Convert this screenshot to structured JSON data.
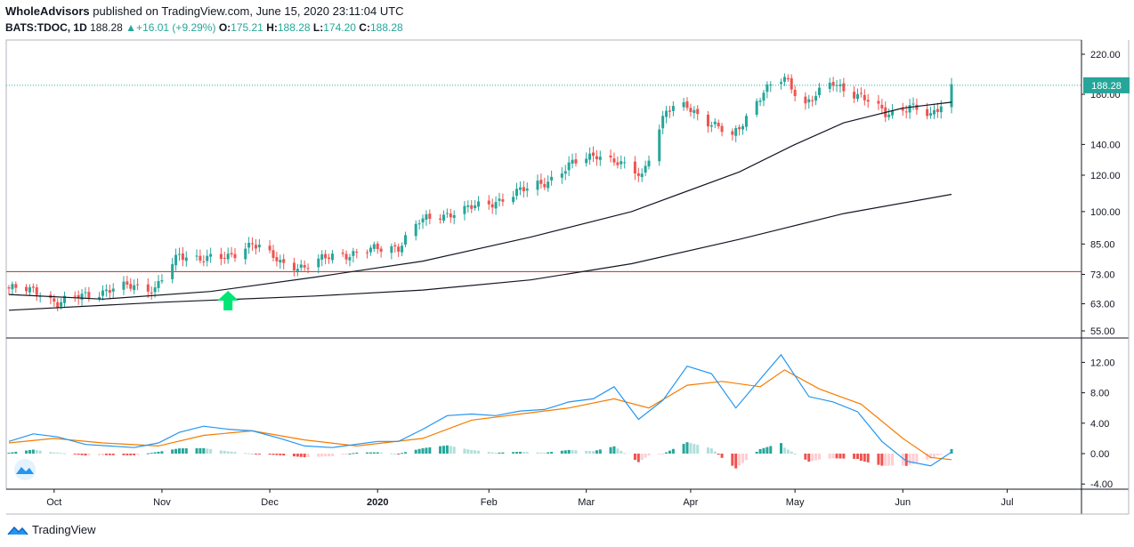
{
  "header": {
    "author": "WholeAdvisors",
    "published_text": "published on TradingView.com, June 15, 2020 23:11:04 UTC",
    "symbol": "BATS:TDOC, 1D",
    "last": "188.28",
    "change": "+16.01 (+9.29%)",
    "open_label": "O:",
    "open": "175.21",
    "high_label": "H:",
    "high": "188.28",
    "low_label": "L:",
    "low": "174.20",
    "close_label": "C:",
    "close": "188.28"
  },
  "footer": {
    "brand": "TradingView"
  },
  "colors": {
    "up": "#26a69a",
    "down": "#ef5350",
    "macd": "#2196f3",
    "signal": "#f57c00",
    "hline": "#c62828",
    "arrow": "#00e676"
  },
  "chart_data": [
    {
      "type": "candlestick",
      "title": "",
      "scale": "log",
      "y_ticks": [
        "220.00",
        "180.00",
        "140.00",
        "120.00",
        "100.00",
        "85.00",
        "73.00",
        "63.00",
        "55.00"
      ],
      "x_ticks": [
        "Oct",
        "Nov",
        "Dec",
        "2020",
        "Feb",
        "Mar",
        "Apr",
        "May",
        "Jun",
        "Jul"
      ],
      "last_price_label": "188.28",
      "horizontal_line": 74,
      "annotation": "green up arrow near Nov 20",
      "price_path": [
        [
          "2019-09-18",
          68
        ],
        [
          "2019-09-27",
          67
        ],
        [
          "2019-10-02",
          63
        ],
        [
          "2019-10-10",
          66
        ],
        [
          "2019-10-24",
          69
        ],
        [
          "2019-10-30",
          68
        ],
        [
          "2019-11-06",
          80
        ],
        [
          "2019-11-20",
          79
        ],
        [
          "2019-11-27",
          86
        ],
        [
          "2019-12-05",
          77
        ],
        [
          "2019-12-12",
          76
        ],
        [
          "2019-12-20",
          80
        ],
        [
          "2020-01-08",
          84
        ],
        [
          "2020-01-14",
          95
        ],
        [
          "2020-01-22",
          99
        ],
        [
          "2020-02-03",
          104
        ],
        [
          "2020-02-14",
          112
        ],
        [
          "2020-02-21",
          118
        ],
        [
          "2020-02-28",
          128
        ],
        [
          "2020-03-05",
          134
        ],
        [
          "2020-03-12",
          126
        ],
        [
          "2020-03-18",
          120
        ],
        [
          "2020-03-25",
          165
        ],
        [
          "2020-03-31",
          170
        ],
        [
          "2020-04-07",
          155
        ],
        [
          "2020-04-13",
          145
        ],
        [
          "2020-04-22",
          182
        ],
        [
          "2020-04-28",
          195
        ],
        [
          "2020-05-04",
          172
        ],
        [
          "2020-05-12",
          190
        ],
        [
          "2020-05-19",
          180
        ],
        [
          "2020-05-27",
          163
        ],
        [
          "2020-06-03",
          170
        ],
        [
          "2020-06-09",
          160
        ],
        [
          "2020-06-12",
          172
        ],
        [
          "2020-06-15",
          188.28
        ]
      ],
      "ma_slow": [
        [
          "2019-09-18",
          66
        ],
        [
          "2019-10-15",
          64.5
        ],
        [
          "2019-11-15",
          67
        ],
        [
          "2019-12-15",
          72
        ],
        [
          "2020-01-15",
          78
        ],
        [
          "2020-02-15",
          88
        ],
        [
          "2020-03-15",
          100
        ],
        [
          "2020-04-15",
          122
        ],
        [
          "2020-05-01",
          140
        ],
        [
          "2020-05-15",
          156
        ],
        [
          "2020-06-01",
          168
        ],
        [
          "2020-06-15",
          173
        ]
      ],
      "ma_long": [
        [
          "2019-09-18",
          61
        ],
        [
          "2019-11-01",
          63.5
        ],
        [
          "2019-12-15",
          65.5
        ],
        [
          "2020-01-15",
          67.5
        ],
        [
          "2020-02-15",
          71
        ],
        [
          "2020-03-15",
          77
        ],
        [
          "2020-04-15",
          87
        ],
        [
          "2020-05-15",
          99
        ],
        [
          "2020-06-15",
          109
        ]
      ]
    },
    {
      "type": "macd",
      "y_ticks": [
        "12.00",
        "8.00",
        "4.00",
        "0.00",
        "-4.00"
      ],
      "macd_line": [
        [
          "2019-09-18",
          1.6
        ],
        [
          "2019-09-25",
          2.6
        ],
        [
          "2019-10-02",
          2.2
        ],
        [
          "2019-10-10",
          1.2
        ],
        [
          "2019-10-24",
          0.8
        ],
        [
          "2019-10-31",
          1.4
        ],
        [
          "2019-11-06",
          2.8
        ],
        [
          "2019-11-13",
          3.6
        ],
        [
          "2019-11-20",
          3.2
        ],
        [
          "2019-11-27",
          3.0
        ],
        [
          "2019-12-05",
          2.0
        ],
        [
          "2019-12-12",
          1.0
        ],
        [
          "2019-12-20",
          0.8
        ],
        [
          "2020-01-02",
          1.6
        ],
        [
          "2020-01-08",
          1.6
        ],
        [
          "2020-01-15",
          3.2
        ],
        [
          "2020-01-22",
          5.0
        ],
        [
          "2020-01-29",
          5.2
        ],
        [
          "2020-02-05",
          5.0
        ],
        [
          "2020-02-12",
          5.6
        ],
        [
          "2020-02-19",
          5.8
        ],
        [
          "2020-02-26",
          6.8
        ],
        [
          "2020-03-04",
          7.2
        ],
        [
          "2020-03-10",
          8.8
        ],
        [
          "2020-03-17",
          4.5
        ],
        [
          "2020-03-24",
          7.0
        ],
        [
          "2020-03-31",
          11.5
        ],
        [
          "2020-04-07",
          10.5
        ],
        [
          "2020-04-14",
          6.0
        ],
        [
          "2020-04-21",
          9.8
        ],
        [
          "2020-04-27",
          13.0
        ],
        [
          "2020-05-05",
          7.5
        ],
        [
          "2020-05-12",
          6.8
        ],
        [
          "2020-05-19",
          5.5
        ],
        [
          "2020-05-26",
          1.6
        ],
        [
          "2020-06-02",
          -1.0
        ],
        [
          "2020-06-09",
          -1.6
        ],
        [
          "2020-06-15",
          0.2
        ]
      ],
      "signal_line": [
        [
          "2019-09-18",
          1.4
        ],
        [
          "2019-10-01",
          2.0
        ],
        [
          "2019-10-15",
          1.4
        ],
        [
          "2019-10-31",
          1.0
        ],
        [
          "2019-11-13",
          2.4
        ],
        [
          "2019-11-27",
          3.0
        ],
        [
          "2019-12-12",
          1.8
        ],
        [
          "2019-12-27",
          1.0
        ],
        [
          "2020-01-15",
          2.0
        ],
        [
          "2020-01-29",
          4.4
        ],
        [
          "2020-02-12",
          5.2
        ],
        [
          "2020-02-26",
          6.0
        ],
        [
          "2020-03-10",
          7.2
        ],
        [
          "2020-03-20",
          6.0
        ],
        [
          "2020-03-31",
          9.0
        ],
        [
          "2020-04-10",
          9.5
        ],
        [
          "2020-04-21",
          8.8
        ],
        [
          "2020-04-28",
          11.0
        ],
        [
          "2020-05-08",
          8.5
        ],
        [
          "2020-05-20",
          6.5
        ],
        [
          "2020-06-01",
          2.0
        ],
        [
          "2020-06-09",
          -0.5
        ],
        [
          "2020-06-15",
          -0.8
        ]
      ]
    }
  ]
}
